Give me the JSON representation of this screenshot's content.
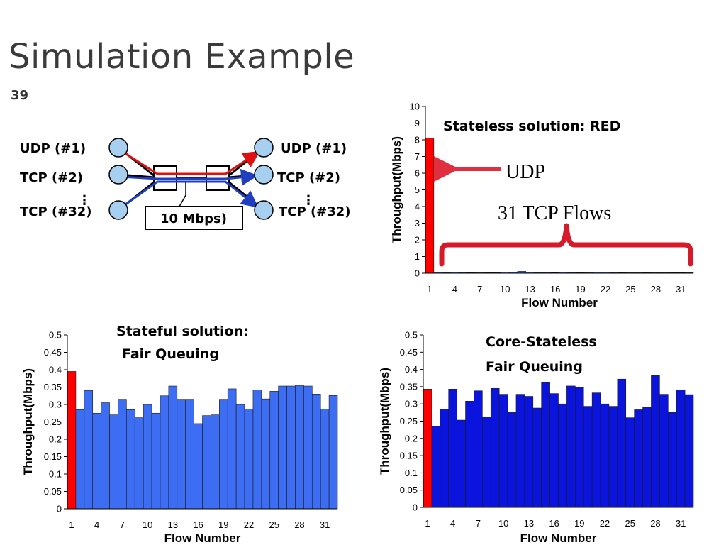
{
  "slide": {
    "title": "Simulation Example",
    "page_number": "39"
  },
  "diagram": {
    "left_nodes": [
      "UDP (#1)",
      "TCP (#2)",
      "TCP (#32)"
    ],
    "right_nodes": [
      "UDP (#1)",
      "TCP (#2)",
      "TCP (#32)"
    ],
    "dots": "⋮",
    "link_label": "10 Mbps)",
    "colors": {
      "node": "#a6cff0",
      "udp_flow": "#e01010",
      "tcp_flow": "#1f3fbf"
    }
  },
  "annotations": {
    "red_title": "Stateless solution: RED",
    "udp_label": "UDP",
    "tcp_label": "31 TCP Flows",
    "fq_title_1": "Stateful solution:",
    "fq_title_2": "Fair Queuing",
    "csfq_title_1": "Core-Stateless",
    "csfq_title_2": "Fair Queuing"
  },
  "chart_data": [
    {
      "id": "red",
      "type": "bar",
      "xlabel": "Flow Number",
      "ylabel": "Throughput(Mbps)",
      "ylim": [
        0,
        10
      ],
      "yticks": [
        "0",
        "1",
        "2",
        "3",
        "4",
        "5",
        "6",
        "7",
        "8",
        "9",
        "10"
      ],
      "xticks": [
        "1",
        "4",
        "7",
        "10",
        "13",
        "16",
        "19",
        "22",
        "25",
        "28",
        "31"
      ],
      "bar_color": "#3366ff",
      "udp_color": "#ff0000",
      "values": [
        8.1,
        0.05,
        0.04,
        0.05,
        0.04,
        0.03,
        0.04,
        0.03,
        0.03,
        0.06,
        0.05,
        0.11,
        0.05,
        0.04,
        0.04,
        0.03,
        0.05,
        0.04,
        0.03,
        0.04,
        0.05,
        0.05,
        0.04,
        0.03,
        0.04,
        0.04,
        0.03,
        0.04,
        0.04,
        0.03,
        0.03,
        0.04
      ]
    },
    {
      "id": "fq",
      "type": "bar",
      "xlabel": "Flow Number",
      "ylabel": "Throughput(Mbps)",
      "ylim": [
        0,
        0.5
      ],
      "yticks": [
        "0",
        "0.05",
        "0.1",
        "0.15",
        "0.2",
        "0.25",
        "0.3",
        "0.35",
        "0.4",
        "0.45",
        "0.5"
      ],
      "xticks": [
        "1",
        "4",
        "7",
        "10",
        "13",
        "16",
        "19",
        "22",
        "25",
        "28",
        "31"
      ],
      "bar_color": "#3d6df2",
      "udp_color": "#ff0000",
      "values": [
        0.395,
        0.285,
        0.34,
        0.275,
        0.305,
        0.27,
        0.315,
        0.285,
        0.262,
        0.3,
        0.275,
        0.325,
        0.353,
        0.315,
        0.315,
        0.245,
        0.268,
        0.27,
        0.315,
        0.345,
        0.3,
        0.287,
        0.342,
        0.316,
        0.338,
        0.353,
        0.353,
        0.355,
        0.353,
        0.33,
        0.287,
        0.326
      ]
    },
    {
      "id": "csfq",
      "type": "bar",
      "xlabel": "Flow Number",
      "ylabel": "Throughput(Mbps)",
      "ylim": [
        0,
        0.5
      ],
      "yticks": [
        "0",
        "0.05",
        "0.1",
        "0.15",
        "0.2",
        "0.25",
        "0.3",
        "0.35",
        "0.4",
        "0.45",
        "0.5"
      ],
      "xticks": [
        "1",
        "4",
        "7",
        "10",
        "13",
        "16",
        "19",
        "22",
        "25",
        "28",
        "31"
      ],
      "bar_color": "#0a14dc",
      "udp_color": "#ff0000",
      "values": [
        0.343,
        0.235,
        0.285,
        0.343,
        0.253,
        0.308,
        0.338,
        0.262,
        0.345,
        0.328,
        0.275,
        0.328,
        0.322,
        0.288,
        0.362,
        0.33,
        0.3,
        0.352,
        0.348,
        0.293,
        0.332,
        0.3,
        0.293,
        0.372,
        0.26,
        0.283,
        0.29,
        0.382,
        0.328,
        0.275,
        0.34,
        0.327
      ]
    }
  ]
}
